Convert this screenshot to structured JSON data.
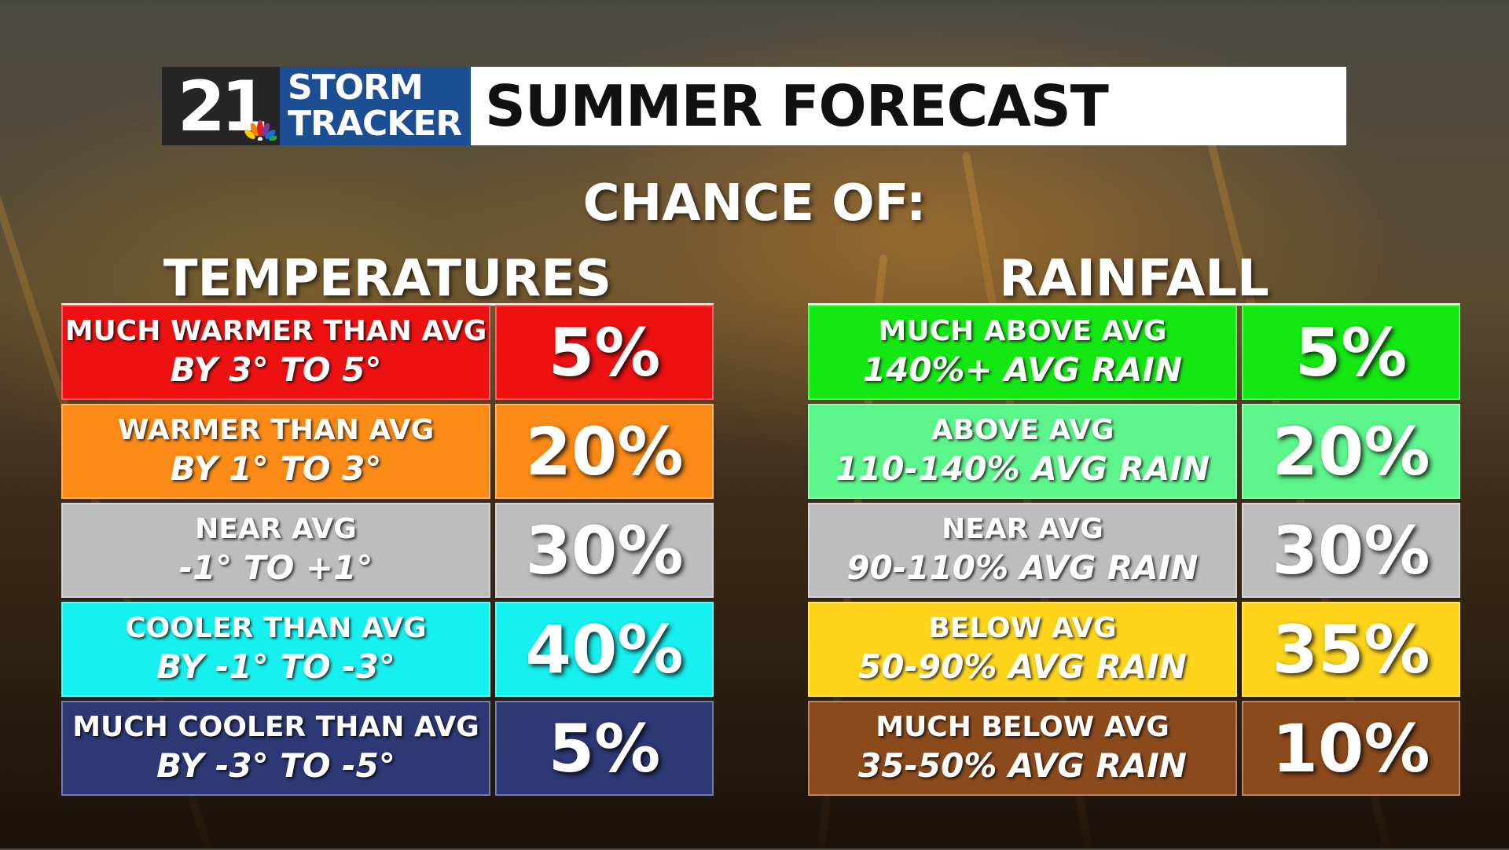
{
  "header": {
    "logo_number": "21",
    "logo_line1": "STORM",
    "logo_line2": "TRACKER",
    "title": "SUMMER FORECAST"
  },
  "subtitle": "CHANCE OF:",
  "temperatures": {
    "title": "TEMPERATURES",
    "rows": [
      {
        "line1": "MUCH WARMER THAN AVG",
        "line2": "BY 3° TO 5°",
        "percent": "5%",
        "color": "#ee1111"
      },
      {
        "line1": "WARMER THAN AVG",
        "line2": "BY 1° TO 3°",
        "percent": "20%",
        "color": "#fb8a16"
      },
      {
        "line1": "NEAR AVG",
        "line2": "-1° TO +1°",
        "percent": "30%",
        "color": "#bdbdbd"
      },
      {
        "line1": "COOLER THAN AVG",
        "line2": "BY -1° TO -3°",
        "percent": "40%",
        "color": "#16f0ee"
      },
      {
        "line1": "MUCH COOLER THAN AVG",
        "line2": "BY -3° TO -5°",
        "percent": "5%",
        "color": "#2d3874"
      }
    ]
  },
  "rainfall": {
    "title": "RAINFALL",
    "rows": [
      {
        "line1": "MUCH ABOVE AVG",
        "line2": "140%+ AVG RAIN",
        "percent": "5%",
        "color": "#13e813"
      },
      {
        "line1": "ABOVE AVG",
        "line2": "110-140% AVG RAIN",
        "percent": "20%",
        "color": "#5cf58b"
      },
      {
        "line1": "NEAR AVG",
        "line2": "90-110% AVG RAIN",
        "percent": "30%",
        "color": "#bdbdbd"
      },
      {
        "line1": "BELOW AVG",
        "line2": "50-90% AVG RAIN",
        "percent": "35%",
        "color": "#fdd41a"
      },
      {
        "line1": "MUCH BELOW AVG",
        "line2": "35-50% AVG RAIN",
        "percent": "10%",
        "color": "#8b4a1c"
      }
    ]
  }
}
